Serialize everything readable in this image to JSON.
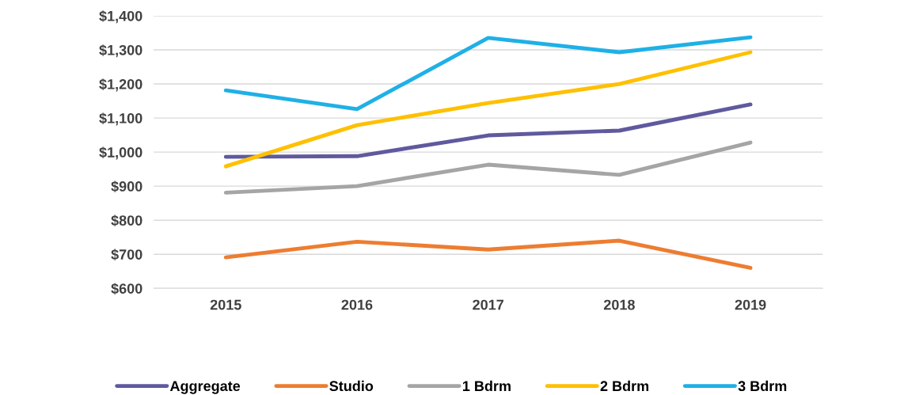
{
  "chart_data": {
    "type": "line",
    "categories": [
      "2015",
      "2016",
      "2017",
      "2018",
      "2019"
    ],
    "series": [
      {
        "name": "Aggregate",
        "color": "#5f5a9e",
        "values": [
          986,
          988,
          1049,
          1063,
          1140
        ]
      },
      {
        "name": "Studio",
        "color": "#ed7d31",
        "values": [
          691,
          737,
          714,
          740,
          660
        ]
      },
      {
        "name": "1 Bdrm",
        "color": "#a5a5a5",
        "values": [
          881,
          900,
          963,
          933,
          1028
        ]
      },
      {
        "name": "2 Bdrm",
        "color": "#ffc000",
        "values": [
          958,
          1079,
          1144,
          1200,
          1293
        ]
      },
      {
        "name": "3 Bdrm",
        "color": "#1fb0e6",
        "values": [
          1181,
          1126,
          1335,
          1293,
          1337
        ]
      }
    ],
    "ylim": [
      600,
      1400
    ],
    "yticks": [
      {
        "value": 600,
        "label": "$600"
      },
      {
        "value": 700,
        "label": "$700"
      },
      {
        "value": 800,
        "label": "$800"
      },
      {
        "value": 900,
        "label": "$900"
      },
      {
        "value": 1000,
        "label": "$1,000"
      },
      {
        "value": 1100,
        "label": "$1,100"
      },
      {
        "value": 1200,
        "label": "$1,200"
      },
      {
        "value": 1300,
        "label": "$1,300"
      },
      {
        "value": 1400,
        "label": "$1,400"
      }
    ],
    "grid": "y",
    "legend": "bottom",
    "marker": "none",
    "line_style": "solid"
  }
}
